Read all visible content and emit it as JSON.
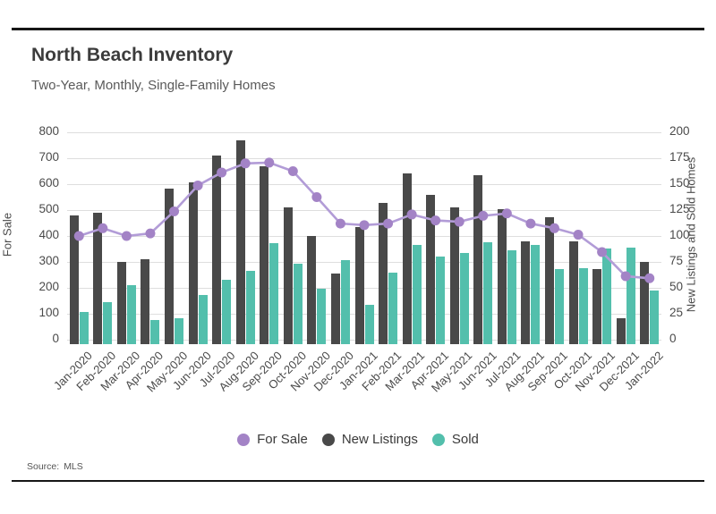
{
  "header": {
    "title": "North Beach Inventory",
    "subtitle": "Two-Year, Monthly, Single-Family Homes"
  },
  "footer": {
    "source_label": "Source:",
    "source_value": "MLS"
  },
  "chart_data": {
    "type": "combo-bar-line",
    "title": "North Beach Inventory",
    "subtitle": "Two-Year, Monthly, Single-Family Homes",
    "grid": "horizontal",
    "grid_color": "#dedede",
    "legend_position": "bottom-center",
    "categories": [
      "Jan-2020",
      "Feb-2020",
      "Mar-2020",
      "Apr-2020",
      "May-2020",
      "Jun-2020",
      "Jul-2020",
      "Aug-2020",
      "Sep-2020",
      "Oct-2020",
      "Nov-2020",
      "Dec-2020",
      "Jan-2021",
      "Feb-2021",
      "Mar-2021",
      "Apr-2021",
      "May-2021",
      "Jun-2021",
      "Jul-2021",
      "Aug-2021",
      "Sep-2021",
      "Oct-2021",
      "Nov-2021",
      "Dec-2021",
      "Jan-2022"
    ],
    "left_axis": {
      "title": "For Sale",
      "min": 0,
      "max": 800,
      "ticks": [
        800,
        700,
        600,
        500,
        400,
        300,
        200,
        100,
        0
      ]
    },
    "right_axis": {
      "title": "New Listings and Sold Homes",
      "min": 0,
      "max": 200,
      "ticks": [
        200,
        175,
        150,
        125,
        100,
        75,
        50,
        25,
        0
      ]
    },
    "series": [
      {
        "name": "For Sale",
        "type": "line",
        "axis": "left",
        "color": "#a383c6",
        "line_color": "#b29cd7",
        "values": [
          400,
          430,
          400,
          410,
          495,
          595,
          645,
          680,
          683,
          650,
          550,
          448,
          442,
          448,
          483,
          460,
          455,
          478,
          487,
          448,
          430,
          405,
          338,
          245,
          237
        ]
      },
      {
        "name": "New Listings",
        "type": "bar",
        "axis": "right",
        "color": "#494949",
        "values": [
          120,
          122,
          75,
          78,
          146,
          152,
          178,
          192,
          167,
          128,
          100,
          64,
          109,
          132,
          160,
          140,
          128,
          159,
          126,
          95,
          118,
          95,
          68,
          21,
          75
        ]
      },
      {
        "name": "Sold",
        "type": "bar",
        "axis": "right",
        "color": "#53bfac",
        "values": [
          27,
          36,
          53,
          19,
          21,
          43,
          58,
          66,
          93,
          73,
          49,
          77,
          34,
          65,
          91,
          80,
          84,
          94,
          86,
          91,
          68,
          69,
          88,
          89,
          47
        ]
      }
    ]
  }
}
